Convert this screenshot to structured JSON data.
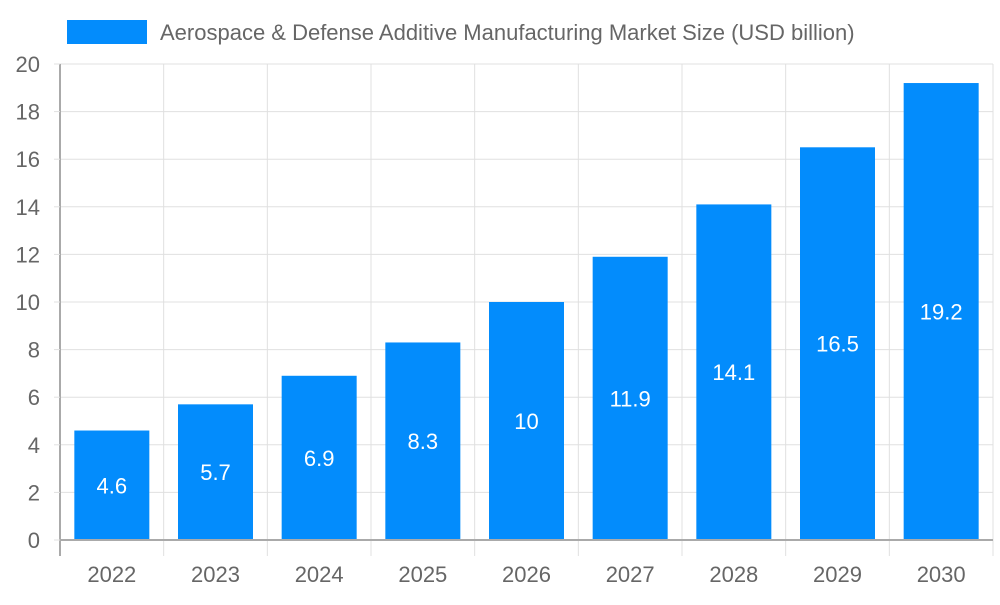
{
  "chart_data": {
    "type": "bar",
    "categories": [
      "2022",
      "2023",
      "2024",
      "2025",
      "2026",
      "2027",
      "2028",
      "2029",
      "2030"
    ],
    "series": [
      {
        "name": "Aerospace & Defense Additive Manufacturing Market Size (USD billion)",
        "values": [
          4.6,
          5.7,
          6.9,
          8.3,
          10,
          11.9,
          14.1,
          16.5,
          19.2
        ],
        "color": "#038cfc"
      }
    ],
    "data_labels": [
      "4.6",
      "5.7",
      "6.9",
      "8.3",
      "10",
      "11.9",
      "14.1",
      "16.5",
      "19.2"
    ],
    "yticks": [
      "0",
      "2",
      "4",
      "6",
      "8",
      "10",
      "12",
      "14",
      "16",
      "18",
      "20"
    ],
    "ylim": [
      0,
      20
    ],
    "grid": true,
    "legend": "top"
  }
}
